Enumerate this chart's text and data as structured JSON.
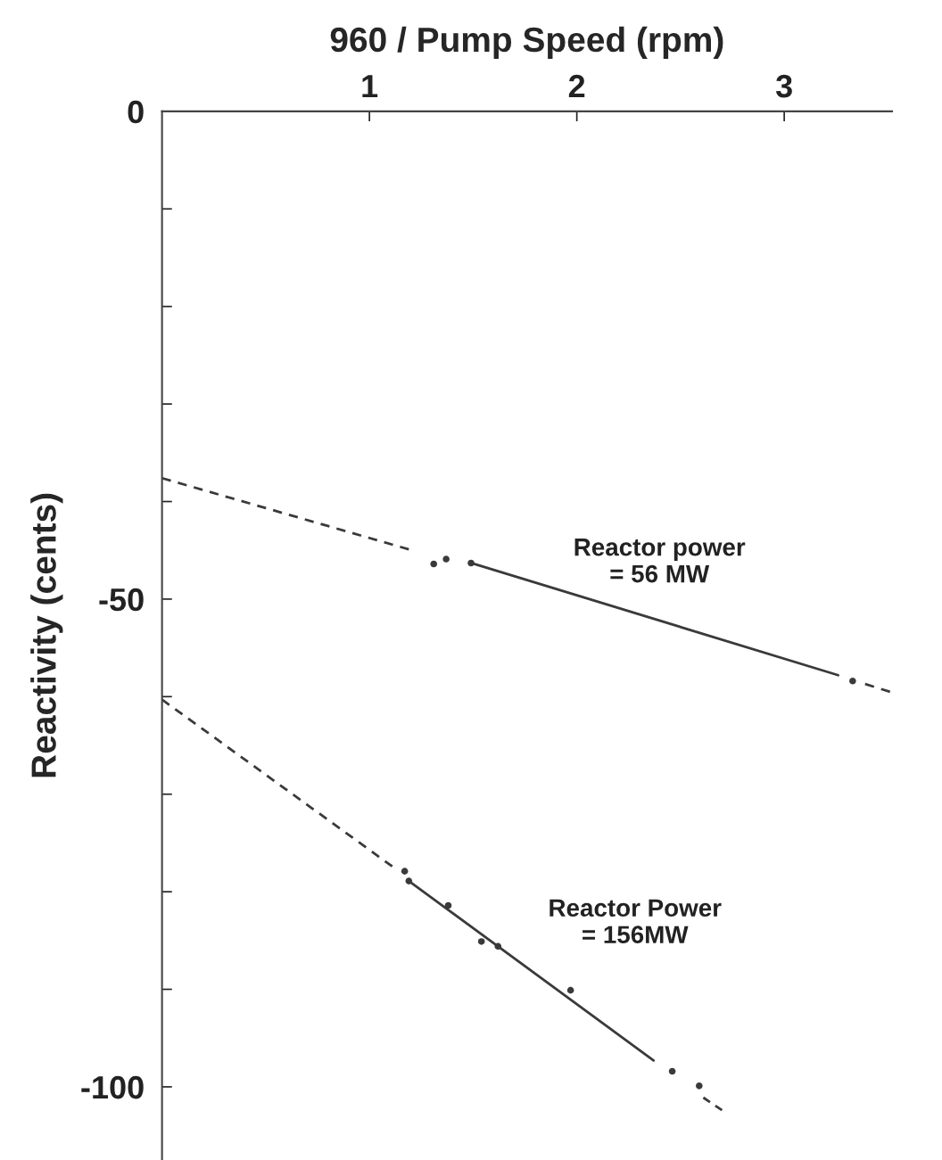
{
  "chart_data": {
    "type": "line",
    "xlabel": "960 / Pump Speed (rpm)",
    "ylabel": "Reactivity (cents)",
    "xlim": [
      0,
      3.52
    ],
    "xticks": [
      1,
      2,
      3
    ],
    "ylim": [
      -107.5,
      0
    ],
    "yticks": [
      0,
      {
        "value": -10,
        "label": null
      },
      {
        "value": -20,
        "label": null
      },
      {
        "value": -30,
        "label": null
      },
      {
        "value": -40,
        "label": null
      },
      "-50",
      {
        "value": -60,
        "label": null
      },
      {
        "value": -70,
        "label": null
      },
      {
        "value": -80,
        "label": null
      },
      {
        "value": -90,
        "label": null
      },
      -100
    ],
    "grid": false,
    "legend": false,
    "series": [
      {
        "type": "line",
        "line_style": "dashed",
        "color": "#3a3a3a",
        "x": [
          0,
          1.19
        ],
        "values": [
          -37.6,
          -44.9
        ]
      },
      {
        "type": "line",
        "line_style": "solid",
        "color": "#3a3a3a",
        "x": [
          1.49,
          3.26
        ],
        "values": [
          -46.3,
          -57.8
        ]
      },
      {
        "type": "line",
        "line_style": "dashed",
        "color": "#3a3a3a",
        "x": [
          3.39,
          3.51
        ],
        "values": [
          -58.7,
          -59.5
        ]
      },
      {
        "type": "scatter",
        "marker": "circle",
        "color": "#3a3a3a",
        "x": [
          1.31,
          1.37,
          1.49,
          3.33
        ],
        "values": [
          -46.4,
          -45.9,
          -46.3,
          -58.4
        ]
      },
      {
        "type": "line",
        "line_style": "dashed",
        "color": "#3a3a3a",
        "x": [
          0,
          1.11
        ],
        "values": [
          -60.3,
          -77.4
        ]
      },
      {
        "type": "line",
        "line_style": "solid",
        "color": "#3a3a3a",
        "x": [
          1.19,
          2.37
        ],
        "values": [
          -78.9,
          -97.3
        ]
      },
      {
        "type": "line",
        "line_style": "dashed",
        "color": "#3a3a3a",
        "x": [
          2.61,
          2.7
        ],
        "values": [
          -101.1,
          -102.4
        ]
      },
      {
        "type": "scatter",
        "marker": "circle",
        "color": "#3a3a3a",
        "x": [
          1.17,
          1.19,
          1.38,
          1.54,
          1.62,
          1.97,
          2.46,
          2.59
        ],
        "values": [
          -77.9,
          -78.9,
          -81.4,
          -85.1,
          -85.6,
          -90.1,
          -98.4,
          -99.9
        ]
      }
    ],
    "annotations": [
      "Reactor power\n= 56 MW",
      "Reactor Power\n= 156MW"
    ]
  }
}
